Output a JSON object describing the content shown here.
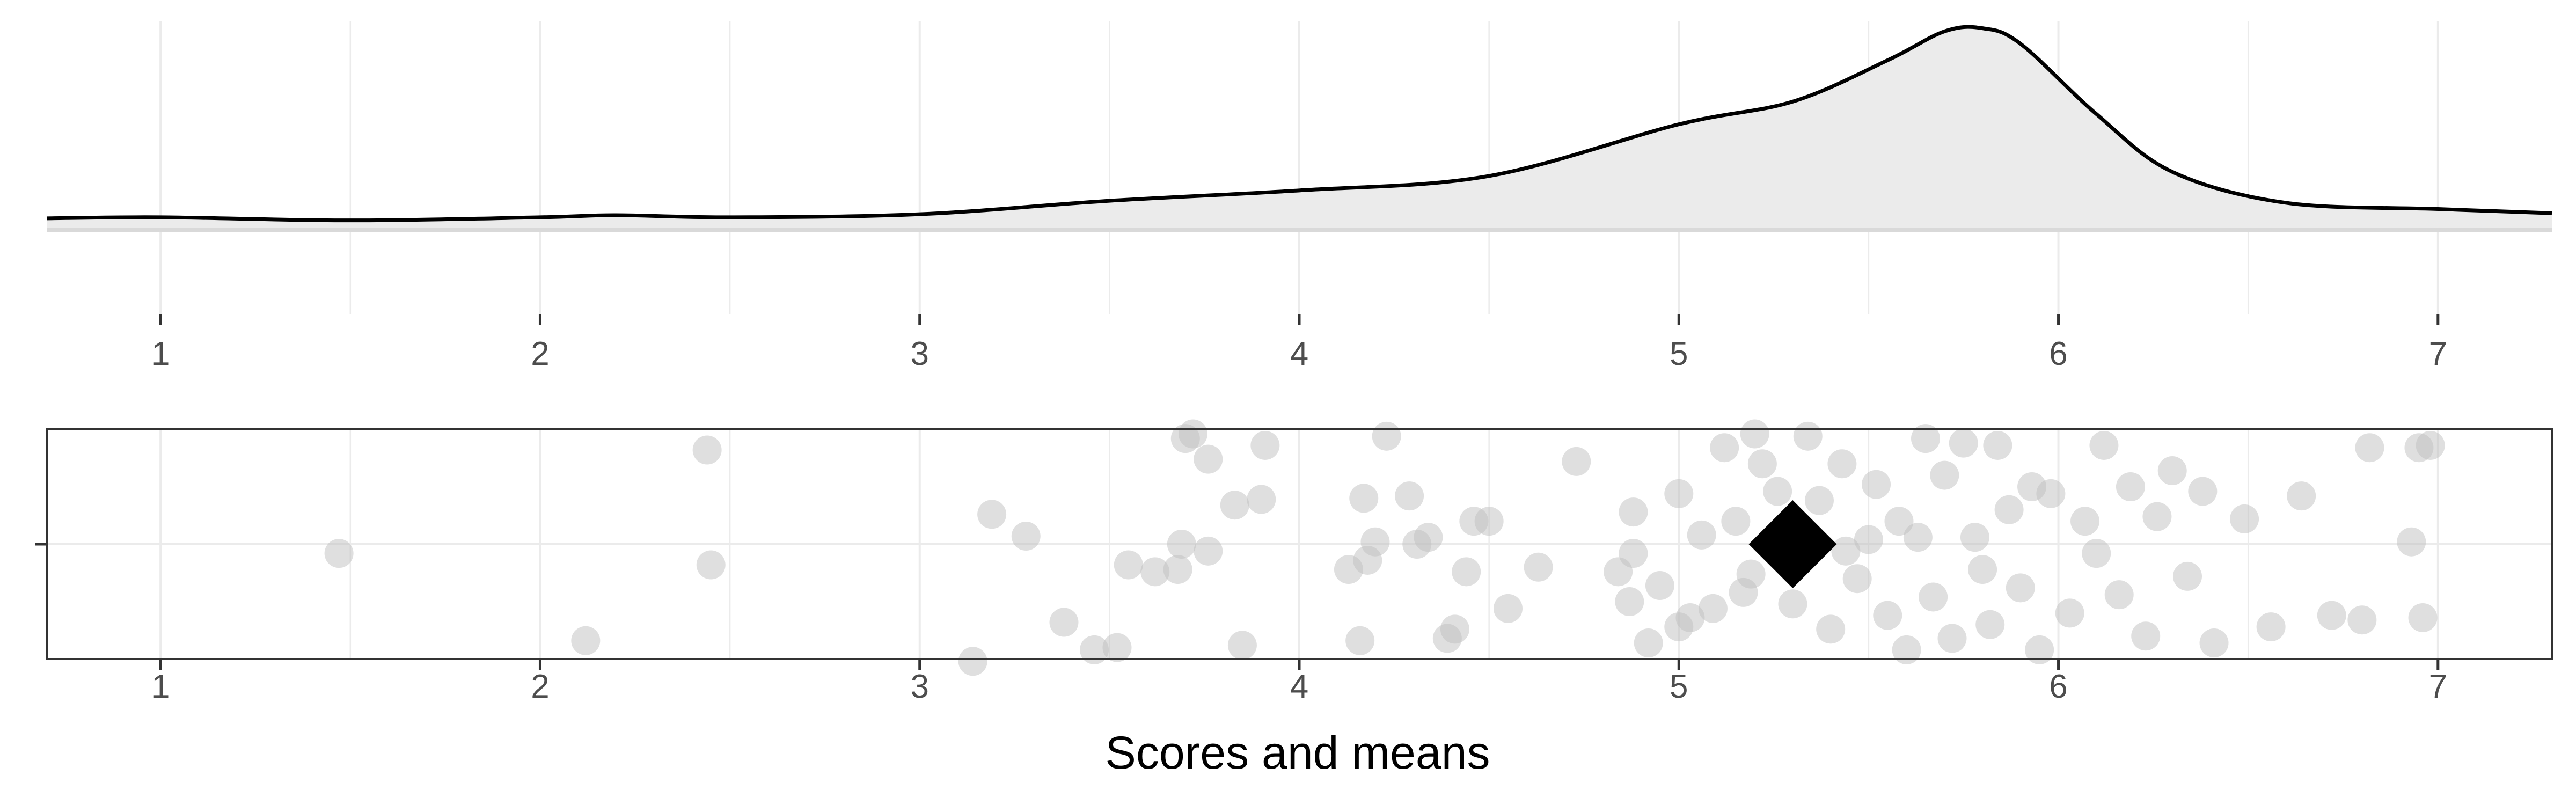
{
  "chart_data": [
    {
      "type": "area",
      "series": [
        {
          "values": [
            [
              0.7,
              0.055
            ],
            [
              1.0,
              0.06
            ],
            [
              1.5,
              0.045
            ],
            [
              2.0,
              0.06
            ],
            [
              2.2,
              0.07
            ],
            [
              2.5,
              0.06
            ],
            [
              3.0,
              0.075
            ],
            [
              3.5,
              0.14
            ],
            [
              4.0,
              0.19
            ],
            [
              4.5,
              0.26
            ],
            [
              5.0,
              0.51
            ],
            [
              5.3,
              0.62
            ],
            [
              5.55,
              0.82
            ],
            [
              5.7,
              0.96
            ],
            [
              5.8,
              0.975
            ],
            [
              5.9,
              0.9
            ],
            [
              6.1,
              0.56
            ],
            [
              6.3,
              0.28
            ],
            [
              6.6,
              0.13
            ],
            [
              7.0,
              0.1
            ],
            [
              7.3,
              0.08
            ]
          ]
        }
      ],
      "xlim": [
        0.7,
        7.3
      ],
      "x_ticks": [
        "1",
        "2",
        "3",
        "4",
        "5",
        "6",
        "7"
      ],
      "grid": true
    },
    {
      "type": "scatter",
      "xlabel": "Scores and means",
      "xlim": [
        0.7,
        7.3
      ],
      "ylim": [
        -1,
        1
      ],
      "x_ticks": [
        "1",
        "2",
        "3",
        "4",
        "5",
        "6",
        "7"
      ],
      "grid": true,
      "mean": 5.3,
      "mean_marker": "diamond",
      "point_color": "#bfbfbf",
      "series": [
        {
          "points": [
            [
              1.47,
              -0.08
            ],
            [
              2.12,
              -0.84
            ],
            [
              2.44,
              0.82
            ],
            [
              2.45,
              -0.18
            ],
            [
              3.14,
              -1.02
            ],
            [
              3.19,
              0.26
            ],
            [
              3.28,
              0.07
            ],
            [
              3.38,
              -0.68
            ],
            [
              3.46,
              -0.92
            ],
            [
              3.52,
              -0.9
            ],
            [
              3.55,
              -0.18
            ],
            [
              3.62,
              -0.24
            ],
            [
              3.68,
              -0.22
            ],
            [
              3.69,
              0.0
            ],
            [
              3.7,
              0.92
            ],
            [
              3.72,
              0.96
            ],
            [
              3.76,
              -0.06
            ],
            [
              3.76,
              0.74
            ],
            [
              3.83,
              0.34
            ],
            [
              3.85,
              -0.88
            ],
            [
              3.9,
              0.39
            ],
            [
              3.91,
              0.86
            ],
            [
              4.13,
              -0.22
            ],
            [
              4.16,
              -0.84
            ],
            [
              4.17,
              0.4
            ],
            [
              4.18,
              -0.14
            ],
            [
              4.2,
              0.02
            ],
            [
              4.23,
              0.94
            ],
            [
              4.29,
              0.42
            ],
            [
              4.31,
              0.0
            ],
            [
              4.34,
              0.06
            ],
            [
              4.39,
              -0.82
            ],
            [
              4.41,
              -0.74
            ],
            [
              4.44,
              -0.24
            ],
            [
              4.46,
              0.2
            ],
            [
              4.5,
              0.2
            ],
            [
              4.55,
              -0.56
            ],
            [
              4.63,
              -0.2
            ],
            [
              4.73,
              0.72
            ],
            [
              4.84,
              -0.24
            ],
            [
              4.87,
              -0.5
            ],
            [
              4.88,
              0.28
            ],
            [
              4.88,
              -0.08
            ],
            [
              4.92,
              -0.86
            ],
            [
              4.95,
              -0.36
            ],
            [
              5.0,
              -0.72
            ],
            [
              5.0,
              0.44
            ],
            [
              5.03,
              -0.64
            ],
            [
              5.06,
              0.08
            ],
            [
              5.09,
              -0.56
            ],
            [
              5.12,
              0.84
            ],
            [
              5.15,
              0.2
            ],
            [
              5.17,
              -0.42
            ],
            [
              5.19,
              -0.26
            ],
            [
              5.2,
              0.96
            ],
            [
              5.22,
              0.7
            ],
            [
              5.26,
              0.46
            ],
            [
              5.3,
              -0.52
            ],
            [
              5.34,
              0.94
            ],
            [
              5.37,
              0.38
            ],
            [
              5.4,
              -0.74
            ],
            [
              5.43,
              0.7
            ],
            [
              5.44,
              -0.06
            ],
            [
              5.47,
              -0.3
            ],
            [
              5.5,
              0.04
            ],
            [
              5.52,
              0.52
            ],
            [
              5.55,
              -0.62
            ],
            [
              5.58,
              0.2
            ],
            [
              5.6,
              -0.92
            ],
            [
              5.63,
              0.06
            ],
            [
              5.65,
              0.92
            ],
            [
              5.67,
              -0.46
            ],
            [
              5.7,
              0.6
            ],
            [
              5.72,
              -0.82
            ],
            [
              5.75,
              0.88
            ],
            [
              5.78,
              0.06
            ],
            [
              5.8,
              -0.22
            ],
            [
              5.82,
              -0.7
            ],
            [
              5.84,
              0.86
            ],
            [
              5.87,
              0.3
            ],
            [
              5.9,
              -0.38
            ],
            [
              5.93,
              0.5
            ],
            [
              5.95,
              -0.92
            ],
            [
              5.98,
              0.44
            ],
            [
              6.03,
              -0.6
            ],
            [
              6.07,
              0.2
            ],
            [
              6.1,
              -0.08
            ],
            [
              6.12,
              0.86
            ],
            [
              6.16,
              -0.44
            ],
            [
              6.19,
              0.5
            ],
            [
              6.23,
              -0.8
            ],
            [
              6.26,
              0.24
            ],
            [
              6.3,
              0.64
            ],
            [
              6.34,
              -0.28
            ],
            [
              6.38,
              0.46
            ],
            [
              6.41,
              -0.86
            ],
            [
              6.49,
              0.22
            ],
            [
              6.56,
              -0.72
            ],
            [
              6.64,
              0.42
            ],
            [
              6.72,
              -0.62
            ],
            [
              6.8,
              -0.66
            ],
            [
              6.82,
              0.84
            ],
            [
              6.93,
              0.02
            ],
            [
              6.95,
              0.84
            ],
            [
              6.96,
              -0.64
            ],
            [
              6.98,
              0.86
            ]
          ]
        }
      ]
    }
  ]
}
